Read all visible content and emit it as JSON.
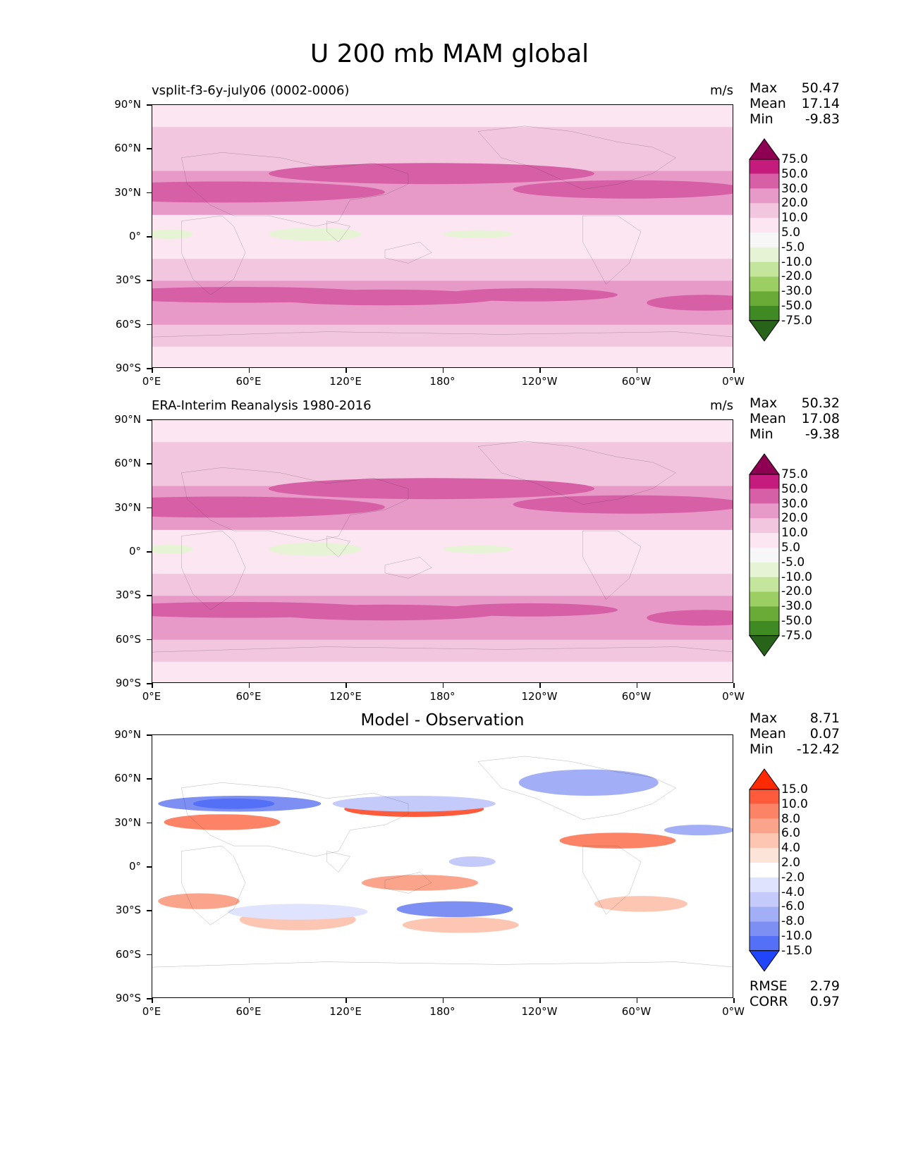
{
  "title": "U 200 mb MAM global",
  "panels": [
    {
      "title_left": "vsplit-f3-6y-july06 (0002-0006)",
      "title_center": "",
      "units": "m/s",
      "stats": [
        {
          "label": "Max",
          "value": "50.47"
        },
        {
          "label": "Mean",
          "value": "17.14"
        },
        {
          "label": "Min",
          "value": "-9.83"
        }
      ]
    },
    {
      "title_left": "ERA-Interim Reanalysis 1980-2016",
      "title_center": "",
      "units": "m/s",
      "stats": [
        {
          "label": "Max",
          "value": "50.32"
        },
        {
          "label": "Mean",
          "value": "17.08"
        },
        {
          "label": "Min",
          "value": "-9.38"
        }
      ]
    },
    {
      "title_left": "",
      "title_center": "Model - Observation",
      "units": "",
      "stats": [
        {
          "label": "Max",
          "value": "8.71"
        },
        {
          "label": "Mean",
          "value": "0.07"
        },
        {
          "label": "Min",
          "value": "-12.42"
        }
      ],
      "metrics": [
        {
          "label": "RMSE",
          "value": "2.79"
        },
        {
          "label": "CORR",
          "value": "0.97"
        }
      ]
    }
  ],
  "axes": {
    "ylabels": [
      "90°N",
      "60°N",
      "30°N",
      "0°",
      "30°S",
      "60°S",
      "90°S"
    ],
    "xlabels_top": [
      "0°E",
      "60°E",
      "120°E",
      "180°",
      "120°W",
      "60°W",
      "0°W"
    ],
    "xlabels_bottom": [
      "0°E",
      "60°E",
      "120°E",
      "180°",
      "120°W",
      "60°W",
      "0°W"
    ]
  },
  "colorbars": {
    "field": {
      "labels": [
        "75.0",
        "50.0",
        "30.0",
        "20.0",
        "10.0",
        "5.0",
        "-5.0",
        "-10.0",
        "-20.0",
        "-30.0",
        "-50.0",
        "-75.0"
      ],
      "colors": [
        "#8e0152",
        "#c51b7d",
        "#d65fa5",
        "#e79ac8",
        "#f3c6e0",
        "#fbe6f1",
        "#f7f7f7",
        "#e6f4d5",
        "#c4e59c",
        "#9bcf64",
        "#6aab37",
        "#3f8a22",
        "#276419"
      ]
    },
    "diff": {
      "labels": [
        "15.0",
        "10.0",
        "8.0",
        "6.0",
        "4.0",
        "2.0",
        "-2.0",
        "-4.0",
        "-6.0",
        "-8.0",
        "-10.0",
        "-15.0"
      ],
      "colors": [
        "#ff2a00",
        "#fe5a3c",
        "#fc8365",
        "#fba48c",
        "#fcc6b2",
        "#fde4d8",
        "#ffffff",
        "#dfe3fd",
        "#c4cbfa",
        "#a2aef6",
        "#7e8ff4",
        "#5470f6",
        "#2145fa"
      ]
    }
  },
  "chart_data": [
    {
      "type": "heatmap",
      "title": "vsplit-f3-6y-july06 (0002-0006)",
      "units": "m/s",
      "x_range": [
        "0°E",
        "0°W"
      ],
      "y_range": [
        "90°S",
        "90°N"
      ],
      "zonal_mean_profile": {
        "lat": [
          90,
          75,
          60,
          45,
          30,
          15,
          0,
          -15,
          -30,
          -45,
          -60,
          -75,
          -90
        ],
        "u": [
          5,
          12,
          15,
          22,
          34,
          14,
          0,
          10,
          25,
          30,
          20,
          8,
          3
        ]
      },
      "stats": {
        "max": 50.47,
        "mean": 17.14,
        "min": -9.83
      }
    },
    {
      "type": "heatmap",
      "title": "ERA-Interim Reanalysis 1980-2016",
      "units": "m/s",
      "x_range": [
        "0°E",
        "0°W"
      ],
      "y_range": [
        "90°S",
        "90°N"
      ],
      "zonal_mean_profile": {
        "lat": [
          90,
          75,
          60,
          45,
          30,
          15,
          0,
          -15,
          -30,
          -45,
          -60,
          -75,
          -90
        ],
        "u": [
          3,
          10,
          15,
          22,
          34,
          14,
          0,
          10,
          26,
          30,
          20,
          8,
          2
        ]
      },
      "stats": {
        "max": 50.32,
        "mean": 17.08,
        "min": -9.38
      }
    },
    {
      "type": "heatmap",
      "title": "Model - Observation",
      "x_range": [
        "0°E",
        "0°W"
      ],
      "y_range": [
        "90°S",
        "90°N"
      ],
      "stats": {
        "max": 8.71,
        "mean": 0.07,
        "min": -12.42,
        "rmse": 2.79,
        "corr": 0.97
      }
    }
  ]
}
